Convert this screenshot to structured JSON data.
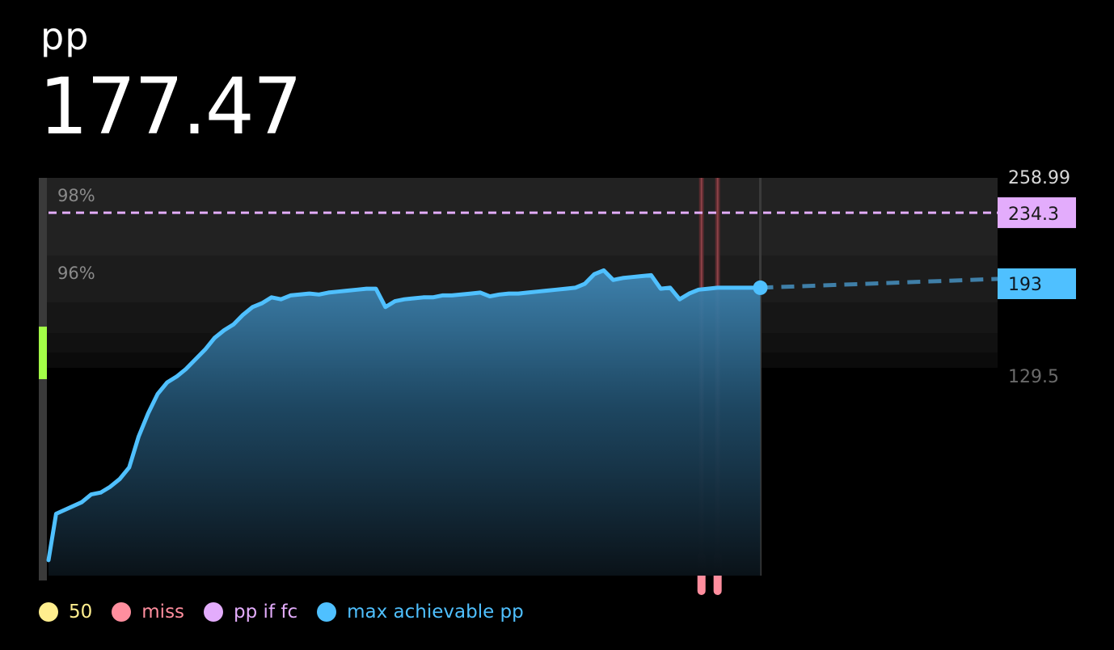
{
  "header": {
    "label": "pp",
    "value": "177.47"
  },
  "colors": {
    "accent_blue": "#4fc0ff",
    "pp_if_fc": "#e3acfc",
    "miss": "#ff8e9e",
    "fifty": "#ffee8e",
    "timeline_ok": "#a3ff47"
  },
  "legend": [
    {
      "label": "50",
      "color": "#ffee8e"
    },
    {
      "label": "miss",
      "color": "#ff8e9e"
    },
    {
      "label": "pp if fc",
      "color": "#e3acfc"
    },
    {
      "label": "max achievable pp",
      "color": "#4fc0ff"
    }
  ],
  "chart_data": {
    "type": "line",
    "y_scale_labels": {
      "top": "258.99",
      "bottom": "129.5"
    },
    "accuracy_bands": [
      {
        "label": "98%",
        "y_top": 258.99,
        "y_bottom": 234.3
      },
      {
        "label": "96%",
        "y_top": 234.3,
        "y_bottom": 210
      },
      {
        "label": "",
        "y_top": 210,
        "y_bottom": 195
      },
      {
        "label": "",
        "y_top": 195,
        "y_bottom": 180
      },
      {
        "label": "",
        "y_top": 180,
        "y_bottom": 165
      }
    ],
    "pp_if_fc": {
      "value": 234.3,
      "label": "234.3"
    },
    "max_achievable": {
      "value": 193,
      "label": "193"
    },
    "x_range": [
      0,
      100
    ],
    "current_x": 75,
    "misses_x": [
      68.8,
      70.5
    ],
    "series": [
      {
        "values_x": [
          0,
          0.8,
          3.5,
          4.5,
          5.5,
          6.5,
          7.5,
          8.5,
          9.5,
          10.5,
          11.5,
          12.5,
          13.5,
          14.5,
          15.5,
          16.5,
          17.5,
          18.5,
          19.5,
          20.5,
          21.5,
          22.5,
          23.5,
          24.5,
          25.5,
          26.5,
          27.5,
          28.5,
          29.5,
          30.5,
          31.5,
          32.5,
          33.5,
          34.5,
          35.5,
          36.5,
          37.5,
          38.5,
          39.5,
          40.5,
          41.5,
          42.5,
          43.5,
          44.5,
          45.5,
          46.5,
          47.5,
          48.5,
          49.5,
          50.5,
          51.5,
          52.5,
          53.5,
          54.5,
          55.5,
          56.5,
          57.5,
          58.5,
          59.5,
          60.5,
          61.5,
          62.5,
          63.5,
          64.5,
          65.5,
          66.5,
          67.5,
          68.5,
          69.5,
          70.5,
          71.5,
          72.5,
          73.5,
          74.5,
          75
        ],
        "values_y": [
          8,
          32,
          38,
          42,
          43,
          46,
          50,
          56,
          72,
          84,
          94,
          100,
          103,
          107,
          112,
          117,
          123,
          127,
          130,
          135,
          139,
          141,
          144,
          143,
          145,
          145.5,
          146,
          145.5,
          146.5,
          147,
          147.5,
          148,
          148.5,
          148.5,
          139,
          142,
          143,
          143.5,
          144,
          144,
          145,
          145,
          145.5,
          146,
          146.5,
          144.5,
          145.5,
          146,
          146,
          146.5,
          147,
          147.5,
          148,
          148.5,
          149,
          151,
          156,
          158,
          153,
          154,
          154.5,
          155,
          155.5,
          148.5,
          149,
          143,
          146,
          148,
          148.5,
          149,
          149,
          149,
          149,
          149,
          149
        ],
        "name": "max achievable pp"
      }
    ]
  }
}
